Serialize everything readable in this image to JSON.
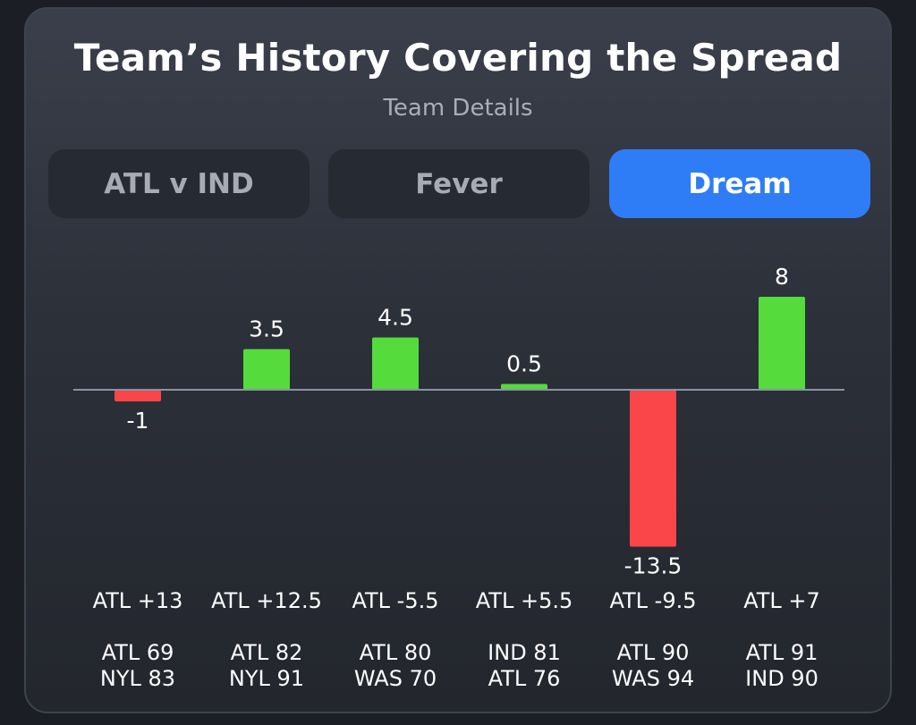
{
  "header": {
    "title": "Team’s History Covering the Spread",
    "subtitle": "Team Details"
  },
  "tabs": [
    {
      "label": "ATL v IND",
      "active": false
    },
    {
      "label": "Fever",
      "active": false
    },
    {
      "label": "Dream",
      "active": true
    }
  ],
  "colors": {
    "positive": "#55db3c",
    "negative": "#fb4649",
    "accent": "#2f7df6",
    "zero_line": "#8a93a6"
  },
  "chart_data": {
    "type": "bar",
    "values": [
      -1,
      3.5,
      4.5,
      0.5,
      -13.5,
      8
    ],
    "data_labels": [
      "-1",
      "3.5",
      "4.5",
      "0.5",
      "-13.5",
      "8"
    ],
    "spread_labels": [
      "ATL +13",
      "ATL +12.5",
      "ATL -5.5",
      "ATL +5.5",
      "ATL -9.5",
      "ATL +7"
    ],
    "score_lines": [
      [
        "ATL 69",
        "NYL 83"
      ],
      [
        "ATL 82",
        "NYL 91"
      ],
      [
        "ATL 80",
        "WAS 70"
      ],
      [
        "IND 81",
        "ATL 76"
      ],
      [
        "ATL 90",
        "WAS 94"
      ],
      [
        "ATL 91",
        "IND 90"
      ]
    ],
    "ylim": [
      -13.5,
      8
    ],
    "grid": false,
    "legend": "none"
  }
}
